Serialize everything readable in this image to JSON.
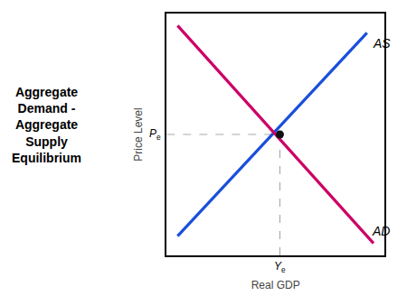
{
  "chart_data": {
    "type": "line",
    "title": "Aggregate\nDemand -\nAggregate\nSupply\nEquilibrium",
    "xlabel": "Real GDP",
    "ylabel": "Price Level",
    "xlim": [
      0,
      1
    ],
    "ylim": [
      0,
      1
    ],
    "xticks": [],
    "yticks": [],
    "tick_labels": false,
    "grid": false,
    "series": [
      {
        "name": "AS",
        "color": "#1a4fdb",
        "x": [
          0.05,
          0.92
        ],
        "values": [
          0.08,
          0.92
        ]
      },
      {
        "name": "AD",
        "color": "#cc0066",
        "x": [
          0.05,
          0.95
        ],
        "values": [
          0.95,
          0.05
        ]
      }
    ],
    "equilibrium": {
      "x": 0.52,
      "y": 0.5,
      "color": "#111111",
      "line_color": "#aaaaaa",
      "x_label": "Y",
      "x_label_sub": "e",
      "y_label": "P",
      "y_label_sub": "e"
    }
  }
}
